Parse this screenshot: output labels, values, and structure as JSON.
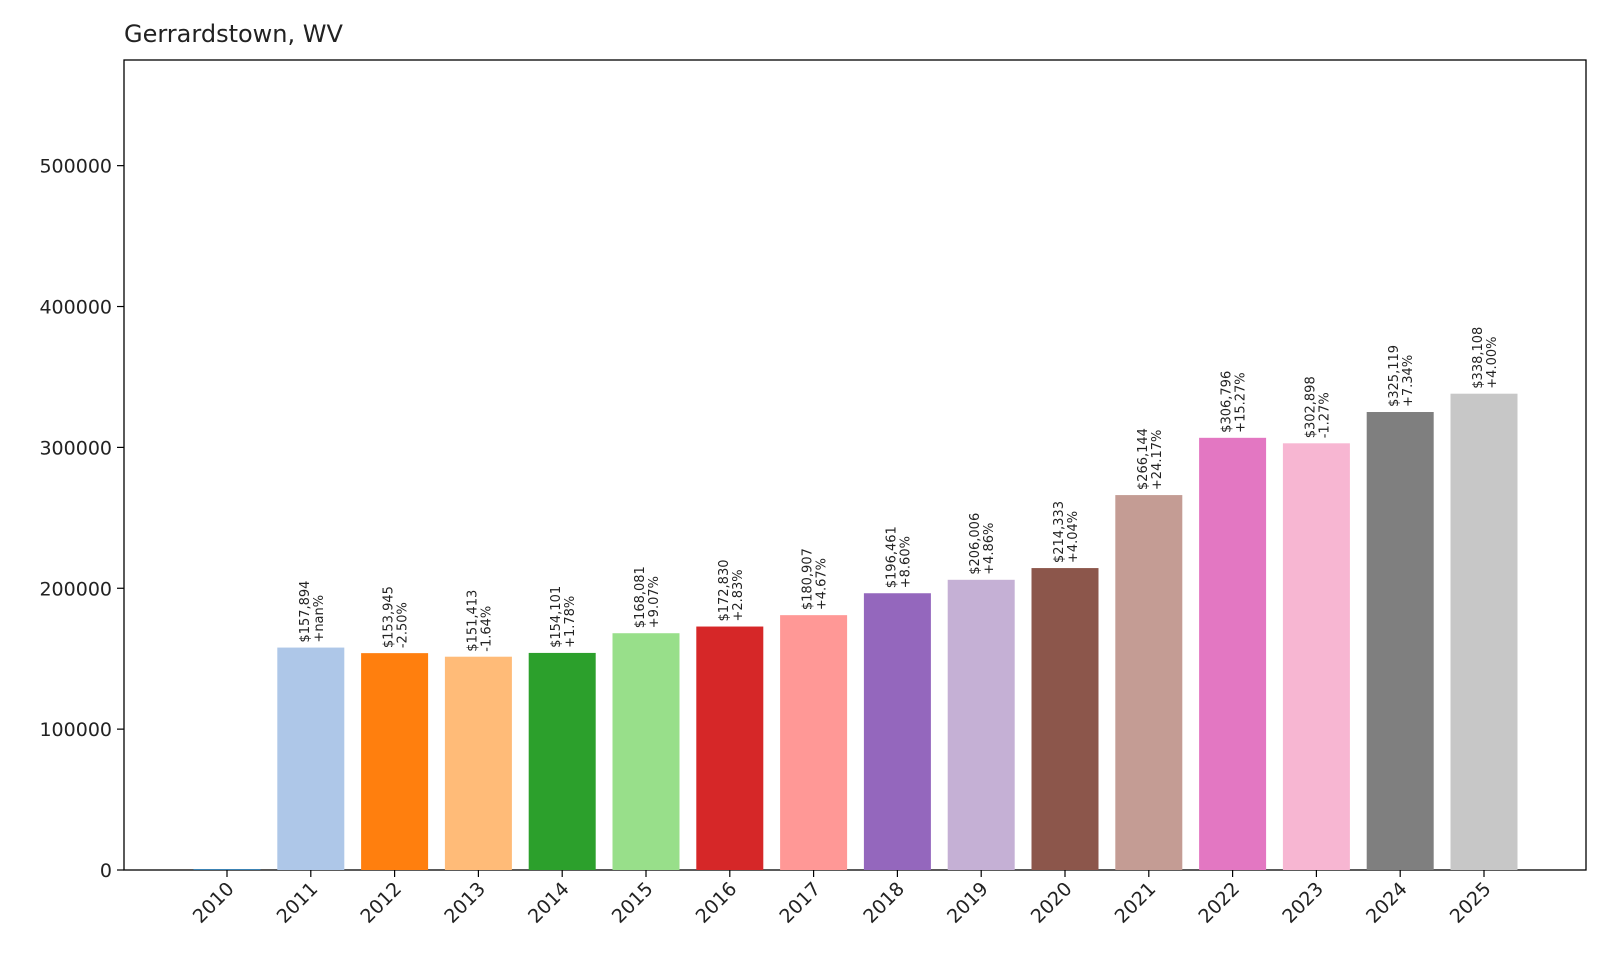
{
  "chart_data": {
    "type": "bar",
    "title": "Gerrardstown, WV",
    "xlabel": "",
    "ylabel": "",
    "ylim": [
      0,
      575000
    ],
    "yticks": [
      0,
      100000,
      200000,
      300000,
      400000,
      500000
    ],
    "ytick_labels": [
      "0",
      "100000",
      "200000",
      "300000",
      "400000",
      "500000"
    ],
    "grid": false,
    "categories": [
      "2010",
      "2011",
      "2012",
      "2013",
      "2014",
      "2015",
      "2016",
      "2017",
      "2018",
      "2019",
      "2020",
      "2021",
      "2022",
      "2023",
      "2024",
      "2025"
    ],
    "values": [
      0,
      157894,
      153945,
      151413,
      154101,
      168081,
      172830,
      180907,
      196461,
      206006,
      214333,
      266144,
      306796,
      302898,
      325119,
      338108
    ],
    "value_labels": [
      "",
      "$157,894",
      "$153,945",
      "$151,413",
      "$154,101",
      "$168,081",
      "$172,830",
      "$180,907",
      "$196,461",
      "$206,006",
      "$214,333",
      "$266,144",
      "$306,796",
      "$302,898",
      "$325,119",
      "$338,108"
    ],
    "change_labels": [
      "",
      "+nan%",
      "-2.50%",
      "-1.64%",
      "+1.78%",
      "+9.07%",
      "+2.83%",
      "+4.67%",
      "+8.60%",
      "+4.86%",
      "+4.04%",
      "+24.17%",
      "+15.27%",
      "-1.27%",
      "+7.34%",
      "+4.00%"
    ],
    "colors": [
      "#1f77b4",
      "#aec7e8",
      "#ff7f0e",
      "#ffbb78",
      "#2ca02c",
      "#98df8a",
      "#d62728",
      "#ff9896",
      "#9467bd",
      "#c5b0d5",
      "#8c564b",
      "#c49c94",
      "#e377c2",
      "#f7b6d2",
      "#7f7f7f",
      "#c7c7c7"
    ]
  }
}
